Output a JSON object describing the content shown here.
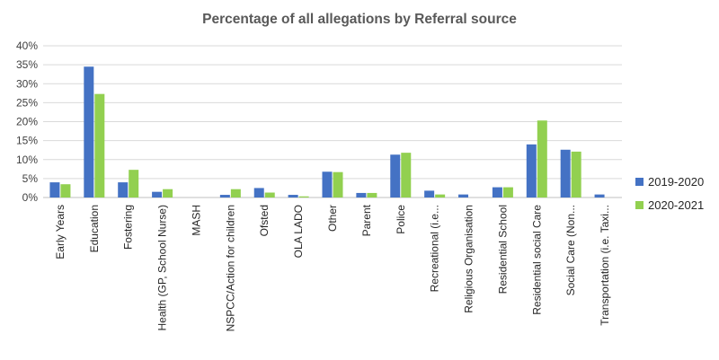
{
  "chart_data": {
    "type": "bar",
    "title": "Percentage of all allegations by Referral source",
    "categories": [
      "Early Years",
      "Education",
      "Fostering",
      "Health (GP, School Nurse)",
      "MASH",
      "NSPCC/Action for children",
      "Ofsted",
      "OLA LADO",
      "Other",
      "Parent",
      "Police",
      "Recreational (i.e...",
      "Religious Organisation",
      "Residential School",
      "Residential social Care",
      "Social Care (Non...",
      "Transportation (i.e. Taxi..."
    ],
    "series": [
      {
        "name": "2019-2020",
        "color": "#4472c4",
        "values": [
          4.0,
          34.5,
          4.0,
          1.5,
          0,
          0.7,
          2.5,
          0.7,
          6.8,
          1.2,
          11.3,
          1.8,
          0.8,
          2.7,
          14.0,
          12.6,
          0.8
        ]
      },
      {
        "name": "2020-2021",
        "color": "#92d050",
        "values": [
          3.5,
          27.3,
          7.3,
          2.2,
          0,
          2.2,
          1.3,
          0.3,
          6.7,
          1.2,
          11.8,
          0.8,
          0,
          2.7,
          20.3,
          12.1,
          0
        ]
      }
    ],
    "yticks": [
      "0%",
      "5%",
      "10%",
      "15%",
      "20%",
      "25%",
      "30%",
      "35%",
      "40%"
    ],
    "ylim": [
      0,
      40
    ],
    "grid": true,
    "legend": "right"
  }
}
